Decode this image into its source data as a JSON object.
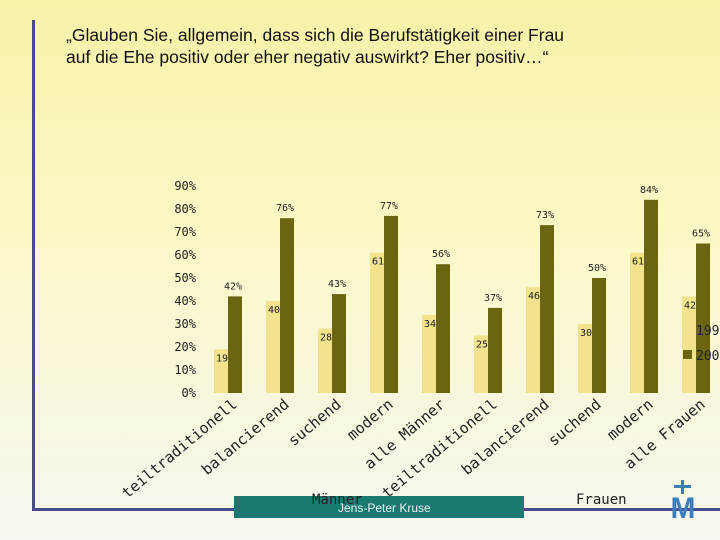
{
  "title_line1": "„Glauben Sie, allgemein, dass sich die Berufstätigkeit einer Frau",
  "title_line2": "auf die Ehe positiv oder eher negativ auswirkt? Eher positiv…“",
  "author": "Jens-Peter Kruse",
  "logo_letter": "M",
  "chart_data": {
    "type": "bar",
    "ylim": [
      0,
      90
    ],
    "yticks": [
      "0%",
      "10%",
      "20%",
      "30%",
      "40%",
      "50%",
      "60%",
      "70%",
      "80%",
      "90%"
    ],
    "groups": [
      "Männer",
      "Frauen"
    ],
    "categories": [
      "teiltraditionell",
      "balancierend",
      "suchend",
      "modern",
      "alle Männer",
      "teiltraditionell",
      "balancierend",
      "suchend",
      "modern",
      "alle Frauen"
    ],
    "series": [
      {
        "name": "199",
        "color": "#f2e38c",
        "values": [
          19,
          40,
          28,
          61,
          34,
          25,
          46,
          30,
          61,
          42
        ],
        "labels": [
          "19%",
          "40%",
          "28%",
          "61%",
          "34%",
          "25%",
          "46%",
          "30%",
          "61%",
          "42%"
        ]
      },
      {
        "name": "200",
        "color": "#6b6512",
        "values": [
          42,
          76,
          43,
          77,
          56,
          37,
          73,
          50,
          84,
          65
        ],
        "labels": [
          "42%",
          "76%",
          "43%",
          "77%",
          "56%",
          "37%",
          "73%",
          "50%",
          "84%",
          "65%"
        ]
      }
    ],
    "colors": {
      "series1": "#f2e38c",
      "series2": "#6b6512",
      "group_bar": "#1a7a72"
    }
  }
}
